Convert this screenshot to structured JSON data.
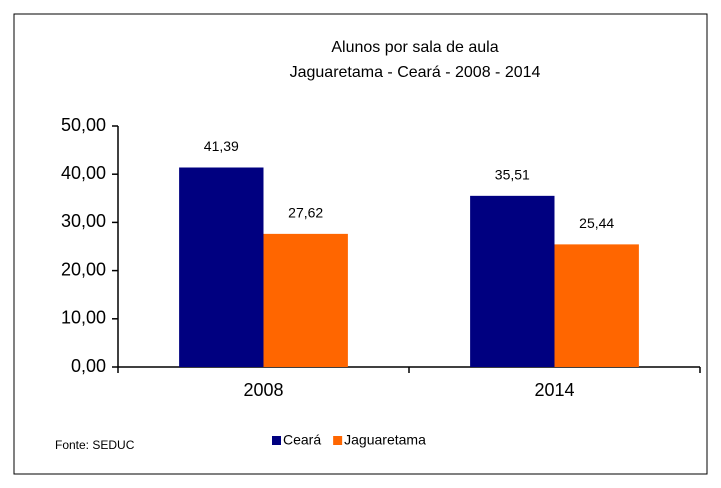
{
  "chart_data": {
    "type": "bar",
    "title": "Alunos por sala de aula",
    "subtitle": "Jaguaretama  - Ceará - 2008 - 2014",
    "categories": [
      "2008",
      "2014"
    ],
    "series": [
      {
        "name": "Ceará",
        "color": "#000080",
        "values": [
          41.39,
          35.51
        ],
        "value_labels": [
          "41,39",
          "35,51"
        ]
      },
      {
        "name": "Jaguaretama",
        "color": "#ff6600",
        "values": [
          27.62,
          25.44
        ],
        "value_labels": [
          "27,62",
          "25,44"
        ]
      }
    ],
    "ylim": [
      0,
      50
    ],
    "yticks": [
      {
        "value": 0,
        "label": "0,00"
      },
      {
        "value": 10,
        "label": "10,00"
      },
      {
        "value": 20,
        "label": "20,00"
      },
      {
        "value": 30,
        "label": "30,00"
      },
      {
        "value": 40,
        "label": "40,00"
      },
      {
        "value": 50,
        "label": "50,00"
      }
    ],
    "grid": false,
    "legend": "bottom",
    "annotations": [
      "Fonte: SEDUC"
    ]
  }
}
